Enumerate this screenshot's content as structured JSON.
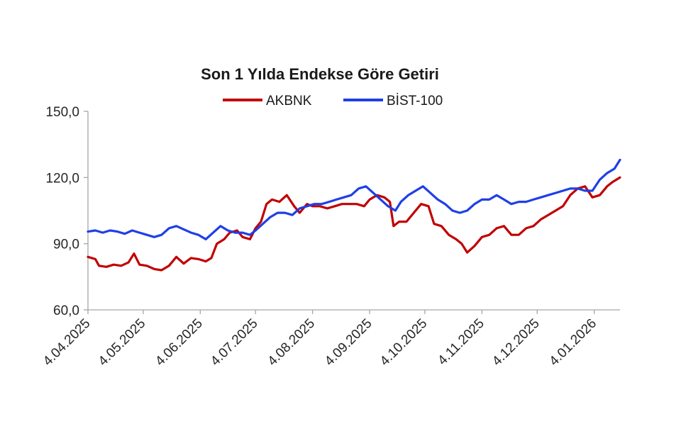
{
  "chart_data": {
    "type": "line",
    "title": "Son 1 Yılda Endekse Göre Getiri",
    "xlabel": "",
    "ylabel": "",
    "x_ticks": [
      "4.04.2025",
      "4.05.2025",
      "4.06.2025",
      "4.07.2025",
      "4.08.2025",
      "4.09.2025",
      "4.10.2025",
      "4.11.2025",
      "4.12.2025",
      "4.01.2026"
    ],
    "x_range": [
      "2025-04-04",
      "2026-01-18"
    ],
    "y_ticks": [
      "60,0",
      "90,0",
      "120,0",
      "150,0"
    ],
    "ylim": [
      60,
      150
    ],
    "grid": false,
    "legend": "top",
    "series": [
      {
        "name": "AKBNK",
        "color": "#c00000",
        "points": [
          [
            "2025-04-04",
            84
          ],
          [
            "2025-04-08",
            83
          ],
          [
            "2025-04-10",
            80
          ],
          [
            "2025-04-14",
            79.5
          ],
          [
            "2025-04-18",
            80.5
          ],
          [
            "2025-04-22",
            80
          ],
          [
            "2025-04-26",
            81.5
          ],
          [
            "2025-04-29",
            85.5
          ],
          [
            "2025-05-02",
            80.5
          ],
          [
            "2025-05-06",
            80
          ],
          [
            "2025-05-10",
            78.5
          ],
          [
            "2025-05-14",
            78
          ],
          [
            "2025-05-18",
            80
          ],
          [
            "2025-05-22",
            84
          ],
          [
            "2025-05-26",
            81
          ],
          [
            "2025-05-30",
            83.5
          ],
          [
            "2025-06-03",
            83
          ],
          [
            "2025-06-07",
            82
          ],
          [
            "2025-06-10",
            83.5
          ],
          [
            "2025-06-13",
            90
          ],
          [
            "2025-06-17",
            92
          ],
          [
            "2025-06-20",
            95
          ],
          [
            "2025-06-24",
            96
          ],
          [
            "2025-06-27",
            93
          ],
          [
            "2025-07-01",
            92
          ],
          [
            "2025-07-04",
            97
          ],
          [
            "2025-07-07",
            100
          ],
          [
            "2025-07-10",
            108
          ],
          [
            "2025-07-13",
            110
          ],
          [
            "2025-07-17",
            109
          ],
          [
            "2025-07-21",
            112
          ],
          [
            "2025-07-25",
            107
          ],
          [
            "2025-07-28",
            104
          ],
          [
            "2025-08-01",
            108
          ],
          [
            "2025-08-04",
            107
          ],
          [
            "2025-08-08",
            107
          ],
          [
            "2025-08-12",
            106
          ],
          [
            "2025-08-16",
            107
          ],
          [
            "2025-08-20",
            108
          ],
          [
            "2025-08-24",
            108
          ],
          [
            "2025-08-28",
            108
          ],
          [
            "2025-09-01",
            107
          ],
          [
            "2025-09-04",
            110
          ],
          [
            "2025-09-08",
            112
          ],
          [
            "2025-09-12",
            111
          ],
          [
            "2025-09-15",
            109
          ],
          [
            "2025-09-17",
            98
          ],
          [
            "2025-09-20",
            100
          ],
          [
            "2025-09-24",
            100
          ],
          [
            "2025-09-28",
            104
          ],
          [
            "2025-10-02",
            108
          ],
          [
            "2025-10-06",
            107
          ],
          [
            "2025-10-09",
            99
          ],
          [
            "2025-10-13",
            98
          ],
          [
            "2025-10-17",
            94
          ],
          [
            "2025-10-21",
            92
          ],
          [
            "2025-10-24",
            90
          ],
          [
            "2025-10-27",
            86
          ],
          [
            "2025-10-31",
            89
          ],
          [
            "2025-11-04",
            93
          ],
          [
            "2025-11-08",
            94
          ],
          [
            "2025-11-12",
            97
          ],
          [
            "2025-11-16",
            98
          ],
          [
            "2025-11-20",
            94
          ],
          [
            "2025-11-24",
            94
          ],
          [
            "2025-11-28",
            97
          ],
          [
            "2025-12-02",
            98
          ],
          [
            "2025-12-06",
            101
          ],
          [
            "2025-12-10",
            103
          ],
          [
            "2025-12-14",
            105
          ],
          [
            "2025-12-18",
            107
          ],
          [
            "2025-12-22",
            112
          ],
          [
            "2025-12-26",
            115
          ],
          [
            "2025-12-30",
            116
          ],
          [
            "2026-01-03",
            111
          ],
          [
            "2026-01-07",
            112
          ],
          [
            "2026-01-11",
            116
          ],
          [
            "2026-01-14",
            118
          ],
          [
            "2026-01-18",
            120
          ]
        ]
      },
      {
        "name": "BİST-100",
        "color": "#1f3fe6",
        "points": [
          [
            "2025-04-04",
            95.5
          ],
          [
            "2025-04-08",
            96
          ],
          [
            "2025-04-12",
            95
          ],
          [
            "2025-04-16",
            96
          ],
          [
            "2025-04-20",
            95.5
          ],
          [
            "2025-04-24",
            94.5
          ],
          [
            "2025-04-28",
            96
          ],
          [
            "2025-05-02",
            95
          ],
          [
            "2025-05-06",
            94
          ],
          [
            "2025-05-10",
            93
          ],
          [
            "2025-05-14",
            94
          ],
          [
            "2025-05-18",
            97
          ],
          [
            "2025-05-22",
            98
          ],
          [
            "2025-05-26",
            96.5
          ],
          [
            "2025-05-30",
            95
          ],
          [
            "2025-06-03",
            94
          ],
          [
            "2025-06-07",
            92
          ],
          [
            "2025-06-11",
            95
          ],
          [
            "2025-06-15",
            98
          ],
          [
            "2025-06-19",
            96
          ],
          [
            "2025-06-23",
            95
          ],
          [
            "2025-06-27",
            95
          ],
          [
            "2025-07-01",
            94
          ],
          [
            "2025-07-04",
            96
          ],
          [
            "2025-07-08",
            99
          ],
          [
            "2025-07-12",
            102
          ],
          [
            "2025-07-16",
            104
          ],
          [
            "2025-07-20",
            104
          ],
          [
            "2025-07-24",
            103
          ],
          [
            "2025-07-28",
            106
          ],
          [
            "2025-08-01",
            107
          ],
          [
            "2025-08-05",
            108
          ],
          [
            "2025-08-09",
            108
          ],
          [
            "2025-08-13",
            109
          ],
          [
            "2025-08-17",
            110
          ],
          [
            "2025-08-21",
            111
          ],
          [
            "2025-08-25",
            112
          ],
          [
            "2025-08-29",
            115
          ],
          [
            "2025-09-02",
            116
          ],
          [
            "2025-09-06",
            113
          ],
          [
            "2025-09-10",
            110
          ],
          [
            "2025-09-14",
            107
          ],
          [
            "2025-09-18",
            105
          ],
          [
            "2025-09-21",
            109
          ],
          [
            "2025-09-25",
            112
          ],
          [
            "2025-09-29",
            114
          ],
          [
            "2025-10-03",
            116
          ],
          [
            "2025-10-07",
            113
          ],
          [
            "2025-10-11",
            110
          ],
          [
            "2025-10-15",
            108
          ],
          [
            "2025-10-19",
            105
          ],
          [
            "2025-10-23",
            104
          ],
          [
            "2025-10-27",
            105
          ],
          [
            "2025-10-31",
            108
          ],
          [
            "2025-11-04",
            110
          ],
          [
            "2025-11-08",
            110
          ],
          [
            "2025-11-12",
            112
          ],
          [
            "2025-11-16",
            110
          ],
          [
            "2025-11-20",
            108
          ],
          [
            "2025-11-24",
            109
          ],
          [
            "2025-11-28",
            109
          ],
          [
            "2025-12-02",
            110
          ],
          [
            "2025-12-06",
            111
          ],
          [
            "2025-12-10",
            112
          ],
          [
            "2025-12-14",
            113
          ],
          [
            "2025-12-18",
            114
          ],
          [
            "2025-12-22",
            115
          ],
          [
            "2025-12-26",
            115
          ],
          [
            "2025-12-30",
            114
          ],
          [
            "2026-01-03",
            114
          ],
          [
            "2026-01-07",
            119
          ],
          [
            "2026-01-11",
            122
          ],
          [
            "2026-01-15",
            124
          ],
          [
            "2026-01-18",
            128
          ]
        ]
      }
    ]
  }
}
